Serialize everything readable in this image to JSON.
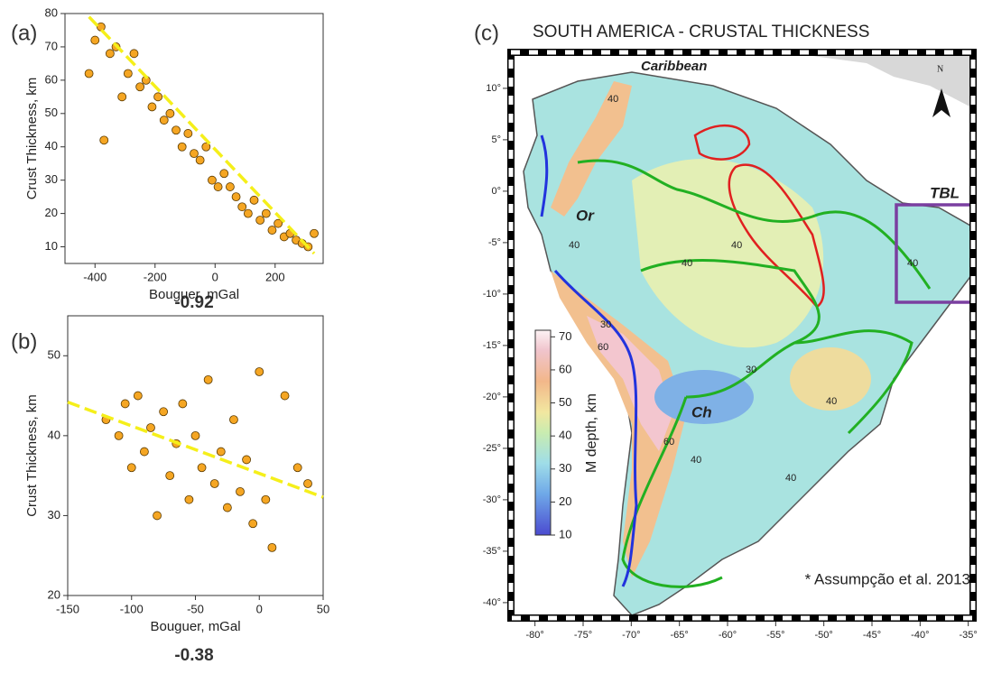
{
  "chart_data": [
    {
      "type": "scatter",
      "panel": "(a)",
      "xlabel": "Bouguer, mGal",
      "ylabel": "Crust Thickness, km",
      "annotation": "-0.92",
      "xlim": [
        -500,
        360
      ],
      "ylim": [
        5,
        80
      ],
      "xticks": [
        -400,
        -200,
        0,
        200
      ],
      "yticks": [
        10,
        20,
        30,
        40,
        50,
        60,
        70,
        80
      ],
      "color": "#f5a623",
      "x": [
        -420,
        -400,
        -380,
        -370,
        -350,
        -330,
        -310,
        -290,
        -270,
        -250,
        -230,
        -210,
        -190,
        -170,
        -150,
        -130,
        -110,
        -90,
        -70,
        -50,
        -30,
        -10,
        10,
        30,
        50,
        70,
        90,
        110,
        130,
        150,
        170,
        190,
        210,
        230,
        250,
        270,
        290,
        310,
        330
      ],
      "values": [
        62,
        72,
        76,
        42,
        68,
        70,
        55,
        62,
        68,
        58,
        60,
        52,
        55,
        48,
        50,
        45,
        40,
        44,
        38,
        36,
        40,
        30,
        28,
        32,
        28,
        25,
        22,
        20,
        24,
        18,
        20,
        15,
        17,
        13,
        14,
        12,
        11,
        10,
        14
      ],
      "trend": {
        "x": [
          -420,
          330
        ],
        "values": [
          79,
          8
        ]
      }
    },
    {
      "type": "scatter",
      "panel": "(b)",
      "xlabel": "Bouguer, mGal",
      "ylabel": "Crust Thickness, km",
      "annotation": "-0.38",
      "xlim": [
        -150,
        50
      ],
      "ylim": [
        20,
        55
      ],
      "xticks": [
        -150,
        -100,
        -50,
        0,
        50
      ],
      "yticks": [
        20,
        30,
        40,
        50
      ],
      "color": "#f5a623",
      "x": [
        -120,
        -110,
        -105,
        -100,
        -95,
        -90,
        -85,
        -80,
        -75,
        -70,
        -65,
        -60,
        -55,
        -50,
        -45,
        -40,
        -35,
        -30,
        -25,
        -20,
        -15,
        -10,
        -5,
        0,
        5,
        10,
        20,
        30,
        38
      ],
      "values": [
        42,
        40,
        44,
        36,
        45,
        38,
        41,
        30,
        43,
        35,
        39,
        44,
        32,
        40,
        36,
        47,
        34,
        38,
        31,
        42,
        33,
        37,
        29,
        48,
        32,
        26,
        45,
        36,
        34
      ],
      "trend": {
        "x": [
          -150,
          50
        ],
        "values": [
          44.2,
          32.3
        ]
      }
    },
    {
      "type": "map",
      "panel": "(c)",
      "title": "SOUTH AMERICA - CRUSTAL THICKNESS",
      "xlim": [
        -82.5,
        -34.5
      ],
      "ylim": [
        -41.5,
        13.5
      ],
      "xticks": [
        {
          "value": -80,
          "label": "-80°"
        },
        {
          "value": -75,
          "label": "-75°"
        },
        {
          "value": -70,
          "label": "-70°"
        },
        {
          "value": -65,
          "label": "-65°"
        },
        {
          "value": -60,
          "label": "-60°"
        },
        {
          "value": -55,
          "label": "-55°"
        },
        {
          "value": -50,
          "label": "-50°"
        },
        {
          "value": -45,
          "label": "-45°"
        },
        {
          "value": -40,
          "label": "-40°"
        },
        {
          "value": -35,
          "label": "-35°"
        }
      ],
      "yticks": [
        {
          "value": 10,
          "label": "10°"
        },
        {
          "value": 5,
          "label": "5°"
        },
        {
          "value": 0,
          "label": "0°"
        },
        {
          "value": -5,
          "label": "-5°"
        },
        {
          "value": -10,
          "label": "-10°"
        },
        {
          "value": -15,
          "label": "-15°"
        },
        {
          "value": -20,
          "label": "-20°"
        },
        {
          "value": -25,
          "label": "-25°"
        },
        {
          "value": -30,
          "label": "-30°"
        },
        {
          "value": -35,
          "label": "-35°"
        },
        {
          "value": -40,
          "label": "-40°"
        }
      ],
      "colorbar": {
        "label": "M depth, km",
        "lim": [
          10,
          72
        ],
        "ticks": [
          10,
          20,
          30,
          40,
          50,
          60,
          70
        ]
      },
      "labels": [
        "Caribbean",
        "Or",
        "Ch",
        "TBL",
        "N",
        "40",
        "40",
        "40",
        "40",
        "40",
        "30",
        "30",
        "60",
        "60",
        "40",
        "40",
        "40"
      ],
      "citation": "* Assumpção et al. 2013"
    }
  ]
}
